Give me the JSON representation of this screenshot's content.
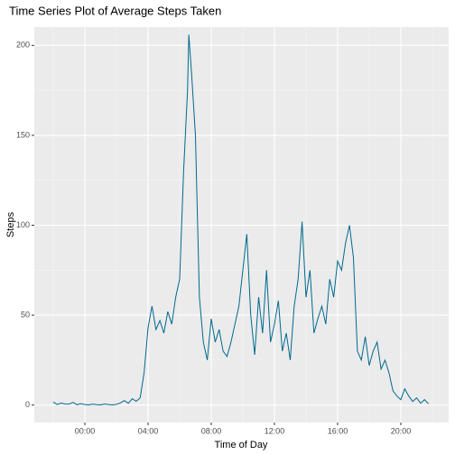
{
  "chart_data": {
    "type": "line",
    "title": "Time Series Plot of Average Steps Taken",
    "x_label": "Time of Day",
    "y_label": "Steps",
    "x": [
      -2,
      -1.75,
      -1.5,
      -1.25,
      -1,
      -0.75,
      -0.5,
      -0.25,
      0,
      0.25,
      0.5,
      0.75,
      1,
      1.25,
      1.5,
      1.75,
      2,
      2.25,
      2.5,
      2.75,
      3,
      3.25,
      3.5,
      3.75,
      4,
      4.25,
      4.5,
      4.75,
      5,
      5.25,
      5.5,
      5.75,
      6,
      6.25,
      6.5,
      6.58,
      6.75,
      7,
      7.25,
      7.5,
      7.75,
      8,
      8.25,
      8.5,
      8.75,
      9,
      9.25,
      9.5,
      9.75,
      10,
      10.25,
      10.5,
      10.75,
      11,
      11.25,
      11.5,
      11.75,
      12,
      12.25,
      12.5,
      12.75,
      13,
      13.25,
      13.5,
      13.75,
      14,
      14.25,
      14.5,
      14.75,
      15,
      15.25,
      15.5,
      15.75,
      16,
      16.25,
      16.5,
      16.75,
      17,
      17.25,
      17.5,
      17.75,
      18,
      18.25,
      18.5,
      18.75,
      19,
      19.25,
      19.5,
      19.75,
      20,
      20.25,
      20.5,
      20.75,
      21,
      21.25,
      21.5,
      21.75
    ],
    "series": [
      {
        "name": "Steps",
        "color": "#00698f",
        "values": [
          1.7,
          0.3,
          1.1,
          0.6,
          0.5,
          1.5,
          0.2,
          0.8,
          0.3,
          0.1,
          0.5,
          0.2,
          0.1,
          0.6,
          0.3,
          0.1,
          0.4,
          1.2,
          2.5,
          1.0,
          3.5,
          2.1,
          4.0,
          18,
          43,
          55,
          42,
          47,
          40,
          52,
          45,
          60,
          70,
          130,
          175,
          206,
          185,
          150,
          60,
          35,
          25,
          48,
          35,
          42,
          30,
          27,
          35,
          45,
          55,
          75,
          95,
          50,
          28,
          60,
          40,
          75,
          35,
          45,
          58,
          30,
          40,
          25,
          55,
          70,
          102,
          60,
          75,
          40,
          48,
          55,
          45,
          70,
          60,
          80,
          75,
          90,
          100,
          82,
          30,
          25,
          38,
          22,
          30,
          35,
          20,
          25,
          18,
          8,
          5,
          3,
          9,
          5,
          2,
          4,
          1,
          3,
          0.7
        ]
      }
    ],
    "xlim": [
      -3.2,
      23.03
    ],
    "ylim": [
      -9.7,
      210.2
    ],
    "xticks": [
      {
        "value": 0,
        "label": "00:00"
      },
      {
        "value": 4,
        "label": "04:00"
      },
      {
        "value": 8,
        "label": "08:00"
      },
      {
        "value": 12,
        "label": "12:00"
      },
      {
        "value": 16,
        "label": "16:00"
      },
      {
        "value": 20,
        "label": "20:00"
      }
    ],
    "yticks": [
      0,
      50,
      100,
      150,
      200
    ],
    "grid": true
  }
}
